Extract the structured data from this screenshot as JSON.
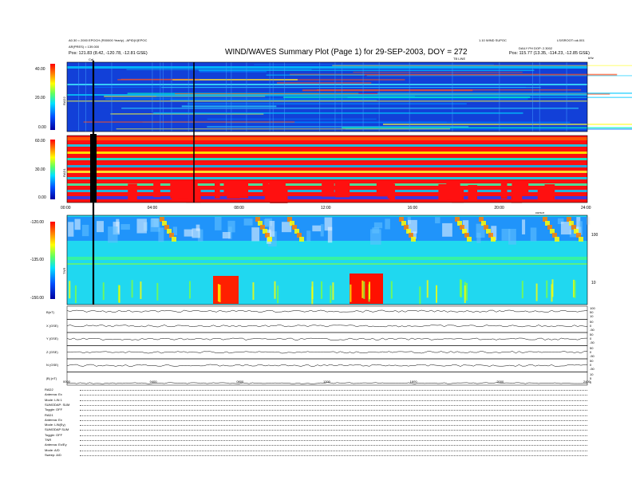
{
  "header": {
    "title": "WIND/WAVES Summary Plot (Page 1) for 29-SEP-2003, DOY = 272",
    "left_line1": "A0.30 = 2000 EPOCH (R00000 Yearly) - APID(V)EPOC",
    "left_line2": "AR(PRES) = 139.000",
    "left_pos": "Pos:   121.83 (8.42, -120.78, -12.81 GSE)",
    "right_line1": "1.10 WIND SUPOC",
    "right_line2": "LS/SROOT=ok.001",
    "right_line3": "DAILY PH DOP: 2.3002",
    "right_pos": "Pos:   115.77 (13.35, -114.23, -12.85 GSE)",
    "ticked_label": "TB LINE",
    "khz_label": "kHz",
    "cal_label": "Cal"
  },
  "panels": [
    {
      "name": "RAD2",
      "ticks": [
        "40.00",
        "20.00",
        "0.00"
      ]
    },
    {
      "name": "RAD1",
      "ticks": [
        "60.00",
        "30.00",
        "0.00"
      ]
    },
    {
      "name": "TNR",
      "ticks": [
        "-120.00",
        "-135.00",
        "-150.00"
      ],
      "right_ticks": [
        "100",
        "10"
      ]
    }
  ],
  "time_axis": [
    "00:00",
    "04:00",
    "08:00",
    "12:00",
    "16:00",
    "20:00",
    "24:00"
  ],
  "time_axis_bottom": [
    "0000",
    "0400",
    "0800",
    "1200",
    "1600",
    "2000",
    "2400"
  ],
  "cursor_label": "cursor",
  "line_panels": [
    {
      "label": "B(nT)",
      "right_ticks": [
        "100",
        "50",
        "10"
      ]
    },
    {
      "label": "X (GSE)",
      "right_ticks": [
        "50",
        "0",
        "-50"
      ]
    },
    {
      "label": "Y (GSE)",
      "right_ticks": [
        "50",
        "0",
        "-50"
      ]
    },
    {
      "label": "Z (GSE)",
      "right_ticks": [
        "50",
        "0",
        "-50"
      ]
    },
    {
      "label": "N (GSE)",
      "right_ticks": [
        "50",
        "0",
        "-50"
      ]
    },
    {
      "label": "|B| (nT)",
      "right_ticks": [
        "10",
        "5",
        "0"
      ]
    }
  ],
  "footer": [
    "RAD2",
    "Antenna:   Ex",
    "Mode:   LIN 1",
    "SUMODAP:  SUM",
    "Toggle:   OFF",
    "RAD1",
    "Antenna:   Ex",
    "Mode:   LIN(Ey)",
    "SUMODAP SUM",
    "Toggle:   OFF",
    "TNR",
    "Antenna:   Ex/Ey",
    "Mode:   A/D",
    "Sweep:   A/D"
  ],
  "chart_data": [
    {
      "type": "heatmap",
      "title": "WIND/WAVES Summary Plot (Page 1) for 29-SEP-2003, DOY = 272",
      "ylabel": "RAD2",
      "ylim": [
        0,
        40
      ],
      "x": [
        "00:00",
        "04:00",
        "08:00",
        "12:00",
        "16:00",
        "20:00",
        "24:00"
      ],
      "colormap": [
        "#00008b",
        "#0000ff",
        "#00bfff",
        "#00ffff",
        "#7fff00",
        "#ffff00",
        "#ff7f00",
        "#ff0000"
      ]
    },
    {
      "type": "heatmap",
      "ylabel": "RAD1",
      "ylim": [
        0,
        60
      ],
      "x": [
        "00:00",
        "04:00",
        "08:00",
        "12:00",
        "16:00",
        "20:00",
        "24:00"
      ]
    },
    {
      "type": "heatmap",
      "ylabel": "TNR",
      "ylim": [
        -150,
        -120
      ],
      "x": [
        "00:00",
        "04:00",
        "08:00",
        "12:00",
        "16:00",
        "20:00",
        "24:00"
      ]
    }
  ]
}
